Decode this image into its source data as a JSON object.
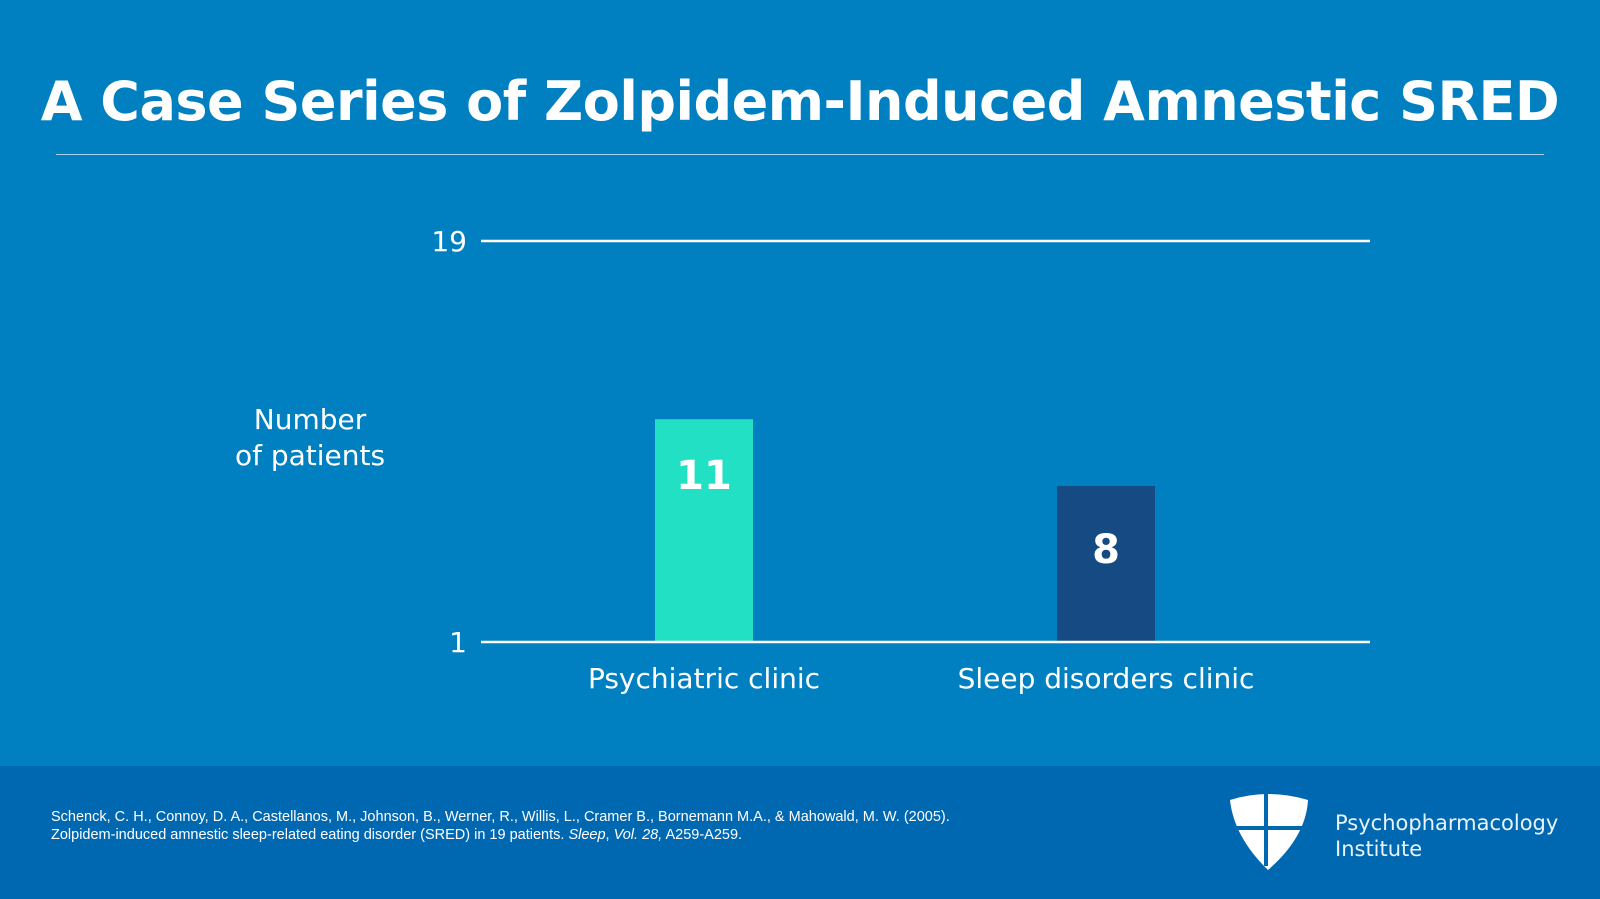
{
  "title": "A Case Series of Zolpidem-Induced Amnestic SRED",
  "chart_data": {
    "type": "bar",
    "categories": [
      "Psychiatric clinic",
      "Sleep disorders clinic"
    ],
    "values": [
      11,
      8
    ],
    "colors": [
      "#22e0c3",
      "#164a82"
    ],
    "data_labels": [
      "11",
      "8"
    ],
    "ylabel_lines": [
      "Number",
      "of patients"
    ],
    "yticks": [
      "1",
      "19"
    ],
    "ylim": [
      1,
      19
    ],
    "xlabel": ""
  },
  "footer": {
    "citation_line1": "Schenck, C. H., Connoy, D. A., Castellanos, M., Johnson, B., Werner, R., Willis, L., Cramer B., Bornemann M.A., & Mahowald, M. W. (2005).",
    "citation_line2_a": "Zolpidem-induced amnestic sleep-related eating disorder (SRED) in 19 patients. ",
    "citation_line2_journal": "Sleep",
    "citation_line2_b": ", ",
    "citation_line2_vol": "Vol. 28,",
    "citation_line2_c": " A259-A259.",
    "brand_line1": "Psychopharmacology",
    "brand_line2": "Institute"
  }
}
